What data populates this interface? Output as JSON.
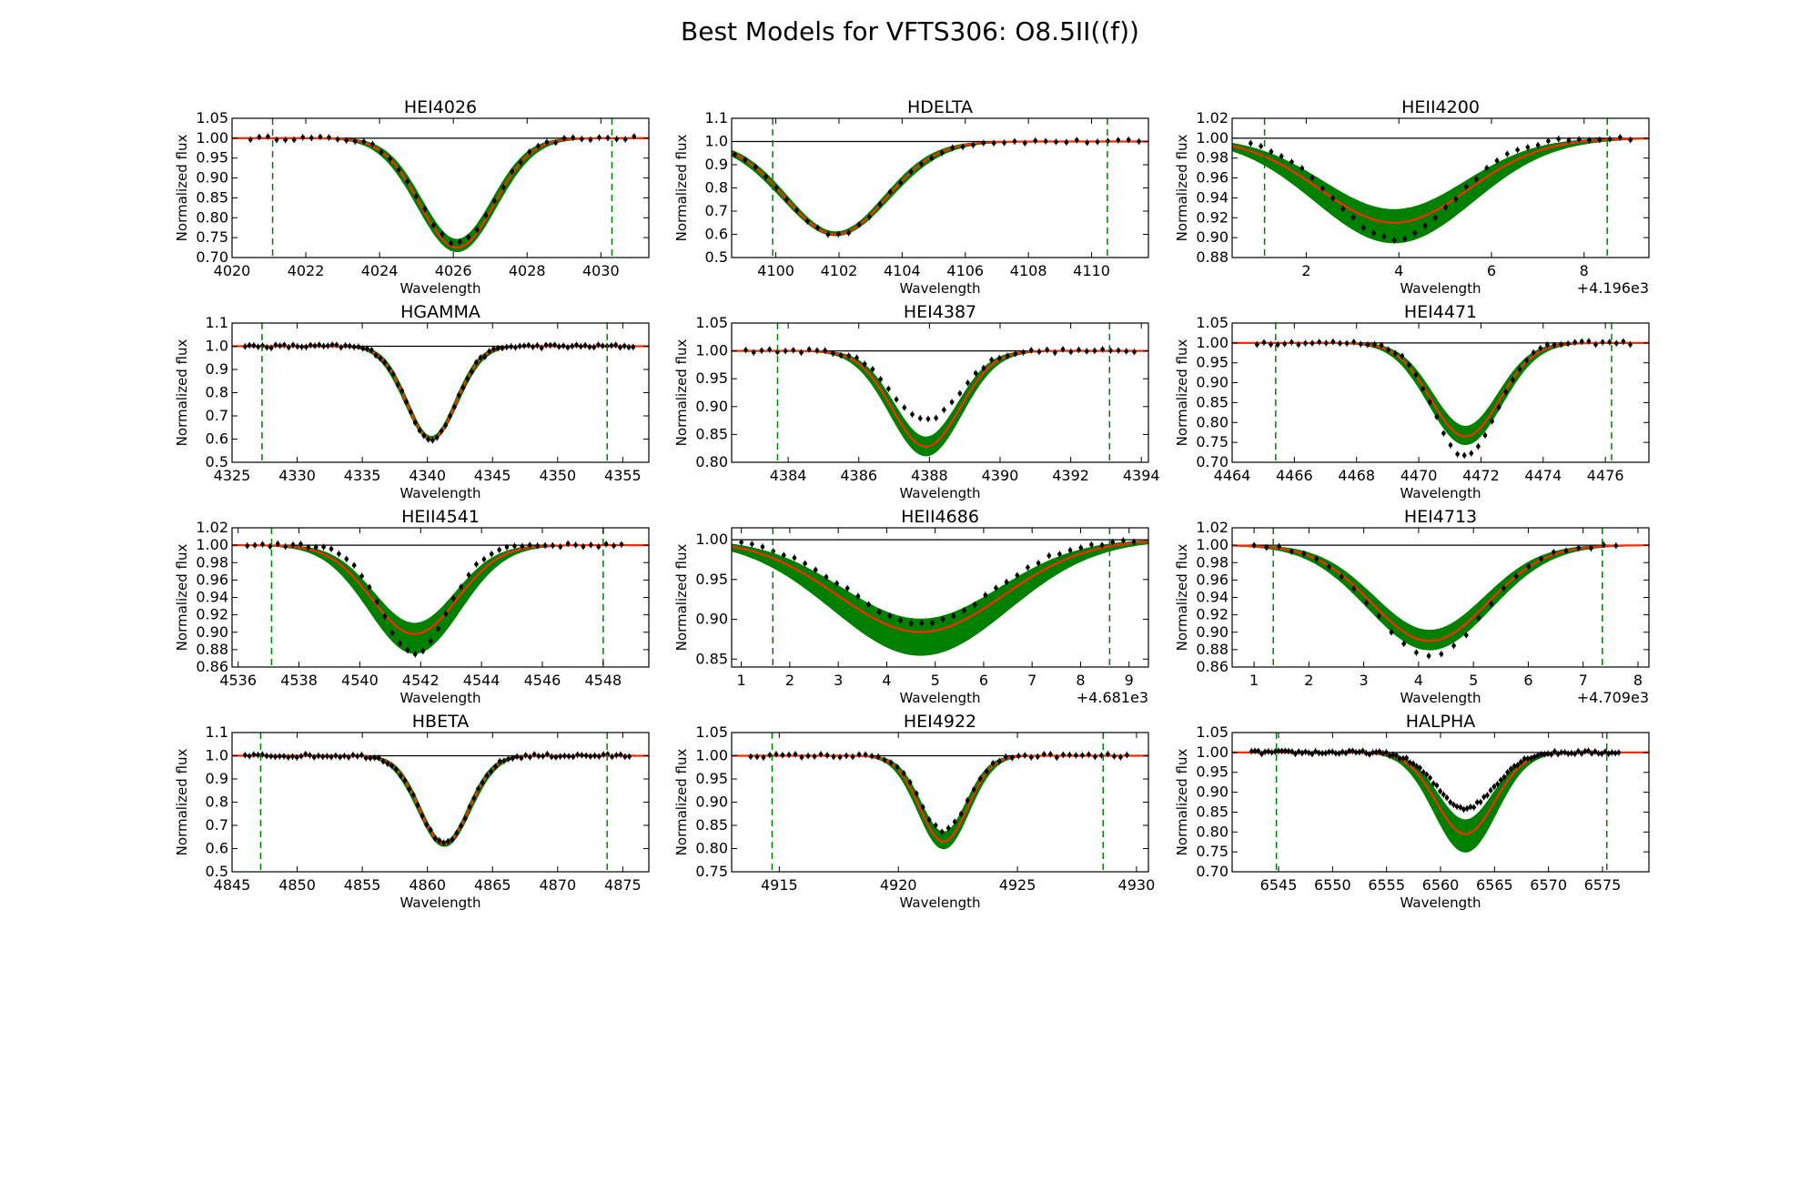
{
  "figure": {
    "title": "Best Models for VFTS306: O8.5II((f))",
    "xlabel": "Wavelength",
    "ylabel": "Normalized flux"
  },
  "colors": {
    "model_band": "#008000",
    "best_model": "#ff2a00",
    "data": "#000000",
    "continuum": "#000000",
    "window": "#008000"
  },
  "chart_data": [
    {
      "type": "line",
      "title": "HEI4026",
      "xlim": [
        4020.0,
        4031.3
      ],
      "ylim": [
        0.7,
        1.05
      ],
      "xticks": [
        4020,
        4022,
        4024,
        4026,
        4028,
        4030
      ],
      "xtick_labels": [
        "4020",
        "4022",
        "4024",
        "4026",
        "4028",
        "4030"
      ],
      "yticks": [
        0.7,
        0.75,
        0.8,
        0.85,
        0.9,
        0.95,
        1.0,
        1.05
      ],
      "ytick_labels": [
        "0.70",
        "0.75",
        "0.80",
        "0.85",
        "0.90",
        "0.95",
        "1.00",
        "1.05"
      ],
      "offset_text": "",
      "window": [
        4021.1,
        4030.3
      ],
      "line_center": 4026.1,
      "model_min": 0.725,
      "band_lo": 0.715,
      "band_hi": 0.745,
      "width": 1.0,
      "data_range": [
        4020.5,
        4030.9
      ],
      "n_points": 45,
      "data_min": 0.735,
      "data_width": 1.0
    },
    {
      "type": "line",
      "title": "HDELTA",
      "xlim": [
        4098.6,
        4111.8
      ],
      "ylim": [
        0.5,
        1.1
      ],
      "xticks": [
        4100,
        4102,
        4104,
        4106,
        4108,
        4110
      ],
      "xtick_labels": [
        "4100",
        "4102",
        "4104",
        "4106",
        "4108",
        "4110"
      ],
      "yticks": [
        0.5,
        0.6,
        0.7,
        0.8,
        0.9,
        1.0,
        1.1
      ],
      "ytick_labels": [
        "0.5",
        "0.6",
        "0.7",
        "0.8",
        "0.9",
        "1.0",
        "1.1"
      ],
      "offset_text": "",
      "window": [
        4099.9,
        4110.5
      ],
      "line_center": 4101.9,
      "model_min": 0.6,
      "band_lo": 0.595,
      "band_hi": 0.61,
      "width": 1.6,
      "data_range": [
        4098.7,
        4111.5
      ],
      "n_points": 40,
      "data_min": 0.6,
      "data_width": 1.6
    },
    {
      "type": "line",
      "title": "HEII4200",
      "xlim": [
        0.4,
        9.4
      ],
      "ylim": [
        0.88,
        1.02
      ],
      "xticks": [
        2,
        4,
        6,
        8
      ],
      "xtick_labels": [
        "2",
        "4",
        "6",
        "8"
      ],
      "yticks": [
        0.88,
        0.9,
        0.92,
        0.94,
        0.96,
        0.98,
        1.0,
        1.02
      ],
      "ytick_labels": [
        "0.88",
        "0.90",
        "0.92",
        "0.94",
        "0.96",
        "0.98",
        "1.00",
        "1.02"
      ],
      "offset_text": "+4.196e3",
      "window": [
        1.1,
        8.5
      ],
      "line_center": 3.9,
      "model_min": 0.915,
      "band_lo": 0.895,
      "band_hi": 0.928,
      "width": 1.6,
      "data_range": [
        0.8,
        9.0
      ],
      "n_points": 38,
      "data_min": 0.899,
      "data_width": 1.3
    },
    {
      "type": "line",
      "title": "HGAMMA",
      "xlim": [
        4325.0,
        4357.0
      ],
      "ylim": [
        0.5,
        1.1
      ],
      "xticks": [
        4325,
        4330,
        4335,
        4340,
        4345,
        4350,
        4355
      ],
      "xtick_labels": [
        "4325",
        "4330",
        "4335",
        "4340",
        "4345",
        "4350",
        "4355"
      ],
      "yticks": [
        0.5,
        0.6,
        0.7,
        0.8,
        0.9,
        1.0,
        1.1
      ],
      "ytick_labels": [
        "0.5",
        "0.6",
        "0.7",
        "0.8",
        "0.9",
        "1.0",
        "1.1"
      ],
      "offset_text": "",
      "window": [
        4327.3,
        4353.8
      ],
      "line_center": 4340.3,
      "model_min": 0.6,
      "band_lo": 0.595,
      "band_hi": 0.61,
      "width": 1.9,
      "data_range": [
        4326.0,
        4355.8
      ],
      "n_points": 90,
      "data_min": 0.6,
      "data_width": 1.9
    },
    {
      "type": "line",
      "title": "HEI4387",
      "xlim": [
        4382.4,
        4394.2
      ],
      "ylim": [
        0.8,
        1.05
      ],
      "xticks": [
        4384,
        4386,
        4388,
        4390,
        4392,
        4394
      ],
      "xtick_labels": [
        "4384",
        "4386",
        "4388",
        "4390",
        "4392",
        "4394"
      ],
      "yticks": [
        0.8,
        0.85,
        0.9,
        0.95,
        1.0,
        1.05
      ],
      "ytick_labels": [
        "0.80",
        "0.85",
        "0.90",
        "0.95",
        "1.00",
        "1.05"
      ],
      "offset_text": "",
      "window": [
        4383.7,
        4393.1
      ],
      "line_center": 4387.9,
      "model_min": 0.828,
      "band_lo": 0.812,
      "band_hi": 0.845,
      "width": 0.95,
      "data_range": [
        4382.8,
        4393.8
      ],
      "n_points": 50,
      "data_min": 0.876,
      "data_width": 0.95
    },
    {
      "type": "line",
      "title": "HEI4471",
      "xlim": [
        4464.0,
        4477.4
      ],
      "ylim": [
        0.7,
        1.05
      ],
      "xticks": [
        4464,
        4466,
        4468,
        4470,
        4472,
        4474,
        4476
      ],
      "xtick_labels": [
        "4464",
        "4466",
        "4468",
        "4470",
        "4472",
        "4474",
        "4476"
      ],
      "yticks": [
        0.7,
        0.75,
        0.8,
        0.85,
        0.9,
        0.95,
        1.0,
        1.05
      ],
      "ytick_labels": [
        "0.70",
        "0.75",
        "0.80",
        "0.85",
        "0.90",
        "0.95",
        "1.00",
        "1.05"
      ],
      "offset_text": "",
      "window": [
        4465.4,
        4476.2
      ],
      "line_center": 4471.5,
      "model_min": 0.765,
      "band_lo": 0.745,
      "band_hi": 0.79,
      "width": 1.1,
      "data_range": [
        4464.8,
        4476.8
      ],
      "n_points": 55,
      "data_min": 0.715,
      "data_width": 1.0
    },
    {
      "type": "line",
      "title": "HEII4541",
      "xlim": [
        4535.8,
        4549.5
      ],
      "ylim": [
        0.86,
        1.02
      ],
      "xticks": [
        4536,
        4538,
        4540,
        4542,
        4544,
        4546,
        4548
      ],
      "xtick_labels": [
        "4536",
        "4538",
        "4540",
        "4542",
        "4544",
        "4546",
        "4548"
      ],
      "yticks": [
        0.86,
        0.88,
        0.9,
        0.92,
        0.94,
        0.96,
        0.98,
        1.0,
        1.02
      ],
      "ytick_labels": [
        "0.86",
        "0.88",
        "0.90",
        "0.92",
        "0.94",
        "0.96",
        "0.98",
        "1.00",
        "1.02"
      ],
      "offset_text": "",
      "window": [
        4537.1,
        4548.0
      ],
      "line_center": 4541.8,
      "model_min": 0.898,
      "band_lo": 0.876,
      "band_hi": 0.91,
      "width": 1.4,
      "data_range": [
        4536.3,
        4548.6
      ],
      "n_points": 50,
      "data_min": 0.876,
      "data_width": 1.1
    },
    {
      "type": "line",
      "title": "HEII4686",
      "xlim": [
        0.8,
        9.4
      ],
      "ylim": [
        0.84,
        1.015
      ],
      "xticks": [
        1,
        2,
        3,
        4,
        5,
        6,
        7,
        8,
        9
      ],
      "xtick_labels": [
        "1",
        "2",
        "3",
        "4",
        "5",
        "6",
        "7",
        "8",
        "9"
      ],
      "offset_text": "+4.681e3",
      "yticks": [
        0.85,
        0.9,
        0.95,
        1.0
      ],
      "ytick_labels": [
        "0.85",
        "0.90",
        "0.95",
        "1.00"
      ],
      "window": [
        1.65,
        8.6
      ],
      "line_center": 4.7,
      "model_min": 0.884,
      "band_lo": 0.855,
      "band_hi": 0.9,
      "width": 1.7,
      "data_range": [
        1.0,
        9.1
      ],
      "n_points": 38,
      "data_min": 0.895,
      "data_width": 1.5
    },
    {
      "type": "line",
      "title": "HEI4713",
      "xlim": [
        0.6,
        8.2
      ],
      "ylim": [
        0.86,
        1.02
      ],
      "xticks": [
        1,
        2,
        3,
        4,
        5,
        6,
        7,
        8
      ],
      "xtick_labels": [
        "1",
        "2",
        "3",
        "4",
        "5",
        "6",
        "7",
        "8"
      ],
      "yticks": [
        0.86,
        0.88,
        0.9,
        0.92,
        0.94,
        0.96,
        0.98,
        1.0,
        1.02
      ],
      "ytick_labels": [
        "0.86",
        "0.88",
        "0.90",
        "0.92",
        "0.94",
        "0.96",
        "0.98",
        "1.00",
        "1.02"
      ],
      "offset_text": "+4.709e3",
      "window": [
        1.35,
        7.35
      ],
      "line_center": 4.2,
      "model_min": 0.89,
      "band_lo": 0.88,
      "band_hi": 0.902,
      "width": 1.05,
      "data_range": [
        1.0,
        7.6
      ],
      "n_points": 30,
      "data_min": 0.872,
      "data_width": 1.0
    },
    {
      "type": "line",
      "title": "HBETA",
      "xlim": [
        4845.0,
        4877.0
      ],
      "ylim": [
        0.5,
        1.1
      ],
      "xticks": [
        4845,
        4850,
        4855,
        4860,
        4865,
        4870,
        4875
      ],
      "xtick_labels": [
        "4845",
        "4850",
        "4855",
        "4860",
        "4865",
        "4870",
        "4875"
      ],
      "yticks": [
        0.5,
        0.6,
        0.7,
        0.8,
        0.9,
        1.0,
        1.1
      ],
      "ytick_labels": [
        "0.5",
        "0.6",
        "0.7",
        "0.8",
        "0.9",
        "1.0",
        "1.1"
      ],
      "offset_text": "",
      "window": [
        4847.2,
        4873.8
      ],
      "line_center": 4861.3,
      "model_min": 0.62,
      "band_lo": 0.61,
      "band_hi": 0.63,
      "width": 1.9,
      "data_range": [
        4846.0,
        4875.5
      ],
      "n_points": 90,
      "data_min": 0.62,
      "data_width": 1.9
    },
    {
      "type": "line",
      "title": "HEI4922",
      "xlim": [
        4913.0,
        4930.5
      ],
      "ylim": [
        0.75,
        1.05
      ],
      "xticks": [
        4915,
        4920,
        4925,
        4930
      ],
      "xtick_labels": [
        "4915",
        "4920",
        "4925",
        "4930"
      ],
      "yticks": [
        0.75,
        0.8,
        0.85,
        0.9,
        0.95,
        1.0,
        1.05
      ],
      "ytick_labels": [
        "0.75",
        "0.80",
        "0.85",
        "0.90",
        "0.95",
        "1.00",
        "1.05"
      ],
      "offset_text": "",
      "window": [
        4914.7,
        4928.6
      ],
      "line_center": 4921.9,
      "model_min": 0.815,
      "band_lo": 0.8,
      "band_hi": 0.835,
      "width": 1.0,
      "data_range": [
        4913.8,
        4929.6
      ],
      "n_points": 60,
      "data_min": 0.838,
      "data_width": 1.0
    },
    {
      "type": "line",
      "title": "HALPHA",
      "xlim": [
        6540.7,
        6579.3
      ],
      "ylim": [
        0.7,
        1.05
      ],
      "xticks": [
        6545,
        6550,
        6555,
        6560,
        6565,
        6570,
        6575
      ],
      "xtick_labels": [
        "6545",
        "6550",
        "6555",
        "6560",
        "6565",
        "6570",
        "6575"
      ],
      "yticks": [
        0.7,
        0.75,
        0.8,
        0.85,
        0.9,
        0.95,
        1.0,
        1.05
      ],
      "ytick_labels": [
        "0.70",
        "0.75",
        "0.80",
        "0.85",
        "0.90",
        "0.95",
        "1.00",
        "1.05"
      ],
      "offset_text": "",
      "window": [
        6544.8,
        6575.4
      ],
      "line_center": 6562.3,
      "model_min": 0.795,
      "band_lo": 0.75,
      "band_hi": 0.83,
      "width": 2.7,
      "data_range": [
        6542.5,
        6576.5
      ],
      "n_points": 110,
      "data_min": 0.86,
      "data_width": 2.7
    }
  ]
}
